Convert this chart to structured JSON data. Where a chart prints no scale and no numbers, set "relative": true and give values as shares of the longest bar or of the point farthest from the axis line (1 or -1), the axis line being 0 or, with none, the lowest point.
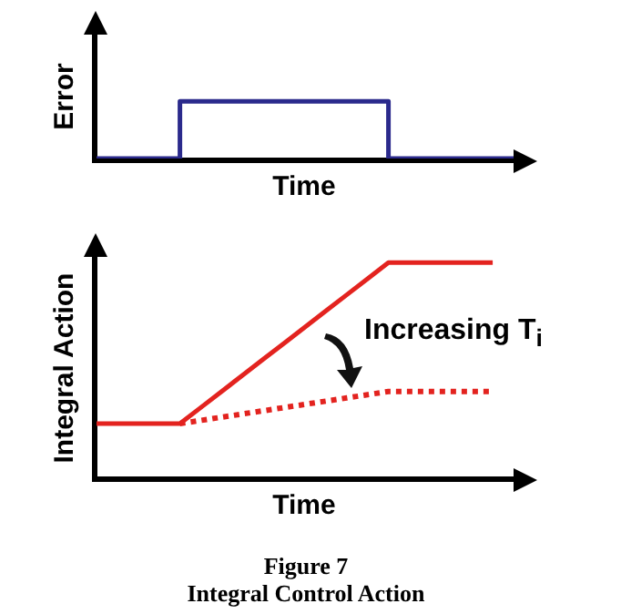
{
  "chart_data": [
    {
      "type": "step",
      "relative": true,
      "xlabel": "Time",
      "ylabel": "Error",
      "categories": [
        null,
        null,
        null,
        null,
        null,
        null,
        null,
        null,
        null,
        null,
        null,
        null,
        null,
        null,
        null,
        null,
        null,
        null,
        null,
        null,
        null
      ],
      "series": [
        {
          "color": "#2b2a8c",
          "values": [
            0,
            0,
            0,
            0,
            1,
            1,
            1,
            1,
            1,
            1,
            1,
            1,
            1,
            1,
            0,
            0,
            0,
            0,
            0,
            0,
            0
          ]
        }
      ]
    },
    {
      "type": "line",
      "relative": true,
      "xlabel": "Time",
      "ylabel": "Integral Action",
      "categories": [
        null,
        null,
        null,
        null,
        null,
        null,
        null,
        null,
        null,
        null,
        null,
        null,
        null,
        null,
        null,
        null,
        null,
        null,
        null,
        null,
        null
      ],
      "series": [
        {
          "color": "#e3231f",
          "line_style": "solid",
          "values": [
            0.25,
            0.25,
            0.25,
            0.25,
            0.25,
            0.325,
            0.4,
            0.475,
            0.55,
            0.625,
            0.7,
            0.775,
            0.85,
            0.925,
            1,
            1,
            1,
            1,
            1,
            1,
            null
          ]
        },
        {
          "color": "#e3231f",
          "line_style": "dotted",
          "values": [
            null,
            null,
            null,
            null,
            0.25,
            0.265,
            0.28,
            0.295,
            0.31,
            0.325,
            0.34,
            0.355,
            0.37,
            0.385,
            0.4,
            0.4,
            0.4,
            0.4,
            0.4,
            0.4,
            null
          ]
        }
      ],
      "annotations": [
        "Increasing T$_{i}$",
        "Figure 7",
        "Integral Control Action"
      ]
    }
  ]
}
